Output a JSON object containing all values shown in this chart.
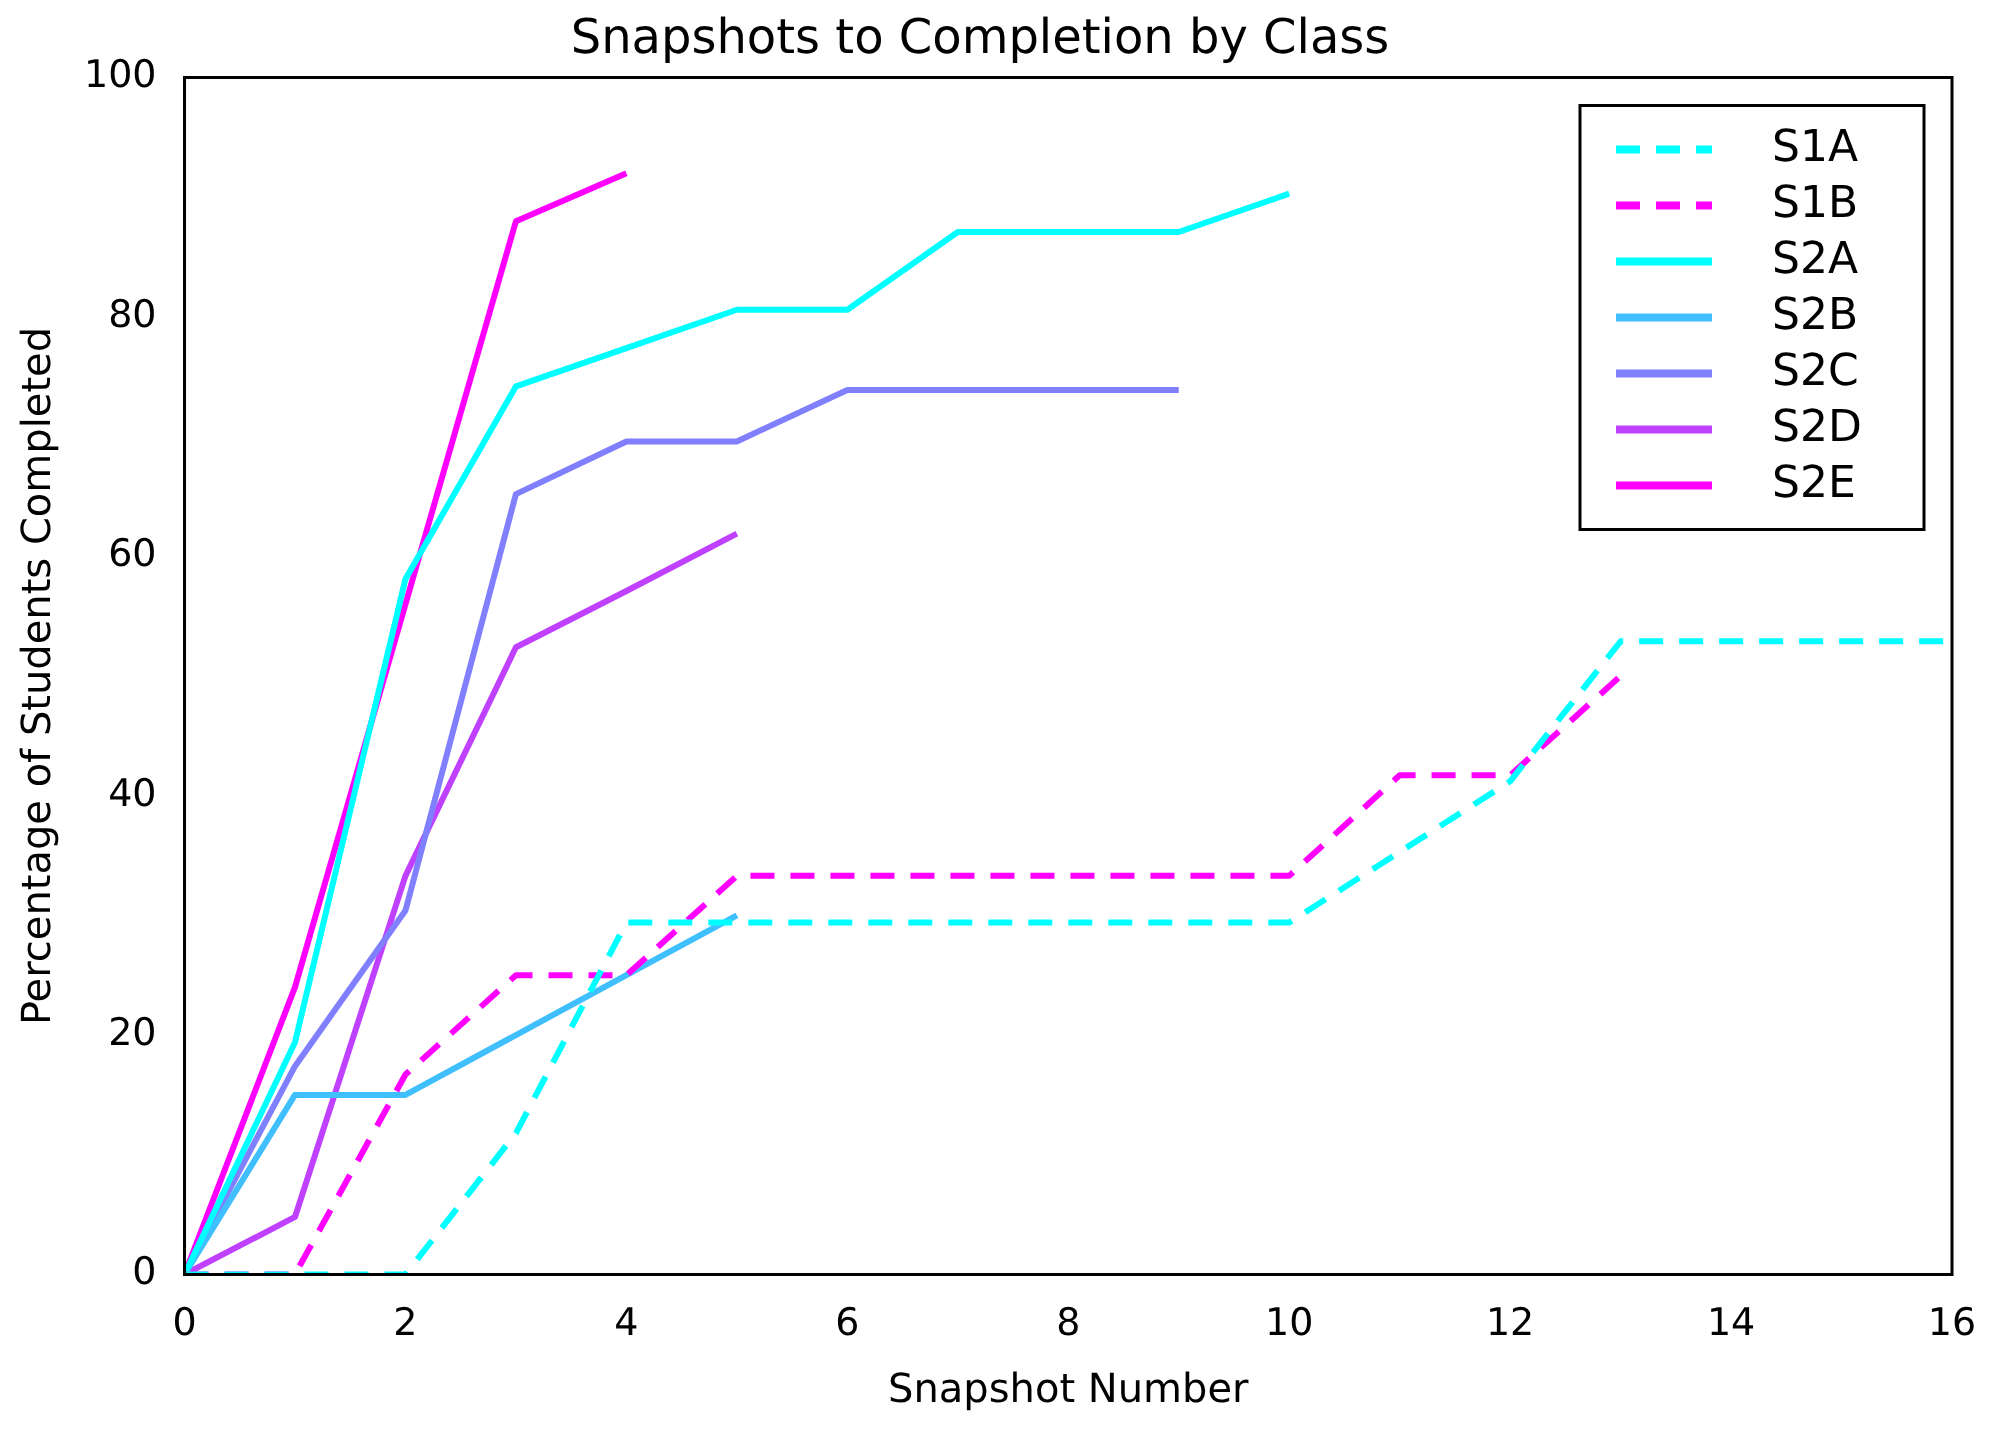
{
  "chart_data": {
    "type": "line",
    "title": "Snapshots to Completion by Class",
    "xlabel": "Snapshot Number",
    "ylabel": "Percentage of Students Completed",
    "xlim": [
      0,
      16
    ],
    "xticks": [
      0,
      2,
      4,
      6,
      8,
      10,
      12,
      14,
      16
    ],
    "ylim": [
      0,
      100
    ],
    "yticks": [
      0,
      20,
      40,
      60,
      80,
      100
    ],
    "grid": false,
    "legend": "top right",
    "marker": "none",
    "series": [
      {
        "name": "S1A",
        "color": "#00ffff",
        "line_style": "dashed",
        "x": [
          0,
          1,
          2,
          3,
          4,
          5,
          6,
          7,
          8,
          9,
          10,
          11,
          12,
          13,
          14,
          15,
          16
        ],
        "values": [
          0,
          0,
          0,
          11.8,
          29.4,
          29.4,
          29.4,
          29.4,
          29.4,
          29.4,
          29.4,
          35.3,
          41.2,
          52.9,
          52.9,
          52.9,
          52.9
        ]
      },
      {
        "name": "S1B",
        "color": "#ff00ff",
        "line_style": "dashed",
        "x": [
          0,
          1,
          2,
          3,
          4,
          5,
          6,
          7,
          8,
          9,
          10,
          11,
          12,
          13
        ],
        "values": [
          0,
          0,
          16.7,
          25,
          25,
          33.3,
          33.3,
          33.3,
          33.3,
          33.3,
          33.3,
          41.7,
          41.7,
          50
        ]
      },
      {
        "name": "S2A",
        "color": "#00ffff",
        "line_style": "solid",
        "x": [
          0,
          1,
          2,
          3,
          4,
          5,
          6,
          7,
          8,
          9,
          10
        ],
        "values": [
          0,
          19.4,
          58.1,
          74.2,
          77.4,
          80.6,
          80.6,
          87.1,
          87.1,
          87.1,
          90.3
        ]
      },
      {
        "name": "S2B",
        "color": "#40bfff",
        "line_style": "solid",
        "x": [
          0,
          1,
          2,
          3,
          4,
          5
        ],
        "values": [
          0,
          15,
          15,
          20,
          25,
          30
        ]
      },
      {
        "name": "S2C",
        "color": "#8080ff",
        "line_style": "solid",
        "x": [
          0,
          1,
          2,
          3,
          4,
          5,
          6,
          7,
          8,
          9
        ],
        "values": [
          0,
          17.4,
          30.4,
          65.2,
          69.6,
          69.6,
          73.9,
          73.9,
          73.9,
          73.9
        ]
      },
      {
        "name": "S2D",
        "color": "#bf40ff",
        "line_style": "solid",
        "x": [
          0,
          1,
          2,
          3,
          4,
          5
        ],
        "values": [
          0,
          4.8,
          33.3,
          52.4,
          57.1,
          61.9
        ]
      },
      {
        "name": "S2E",
        "color": "#ff00ff",
        "line_style": "solid",
        "x": [
          0,
          1,
          2,
          3,
          4
        ],
        "values": [
          0,
          24,
          56,
          88,
          92
        ]
      }
    ]
  }
}
